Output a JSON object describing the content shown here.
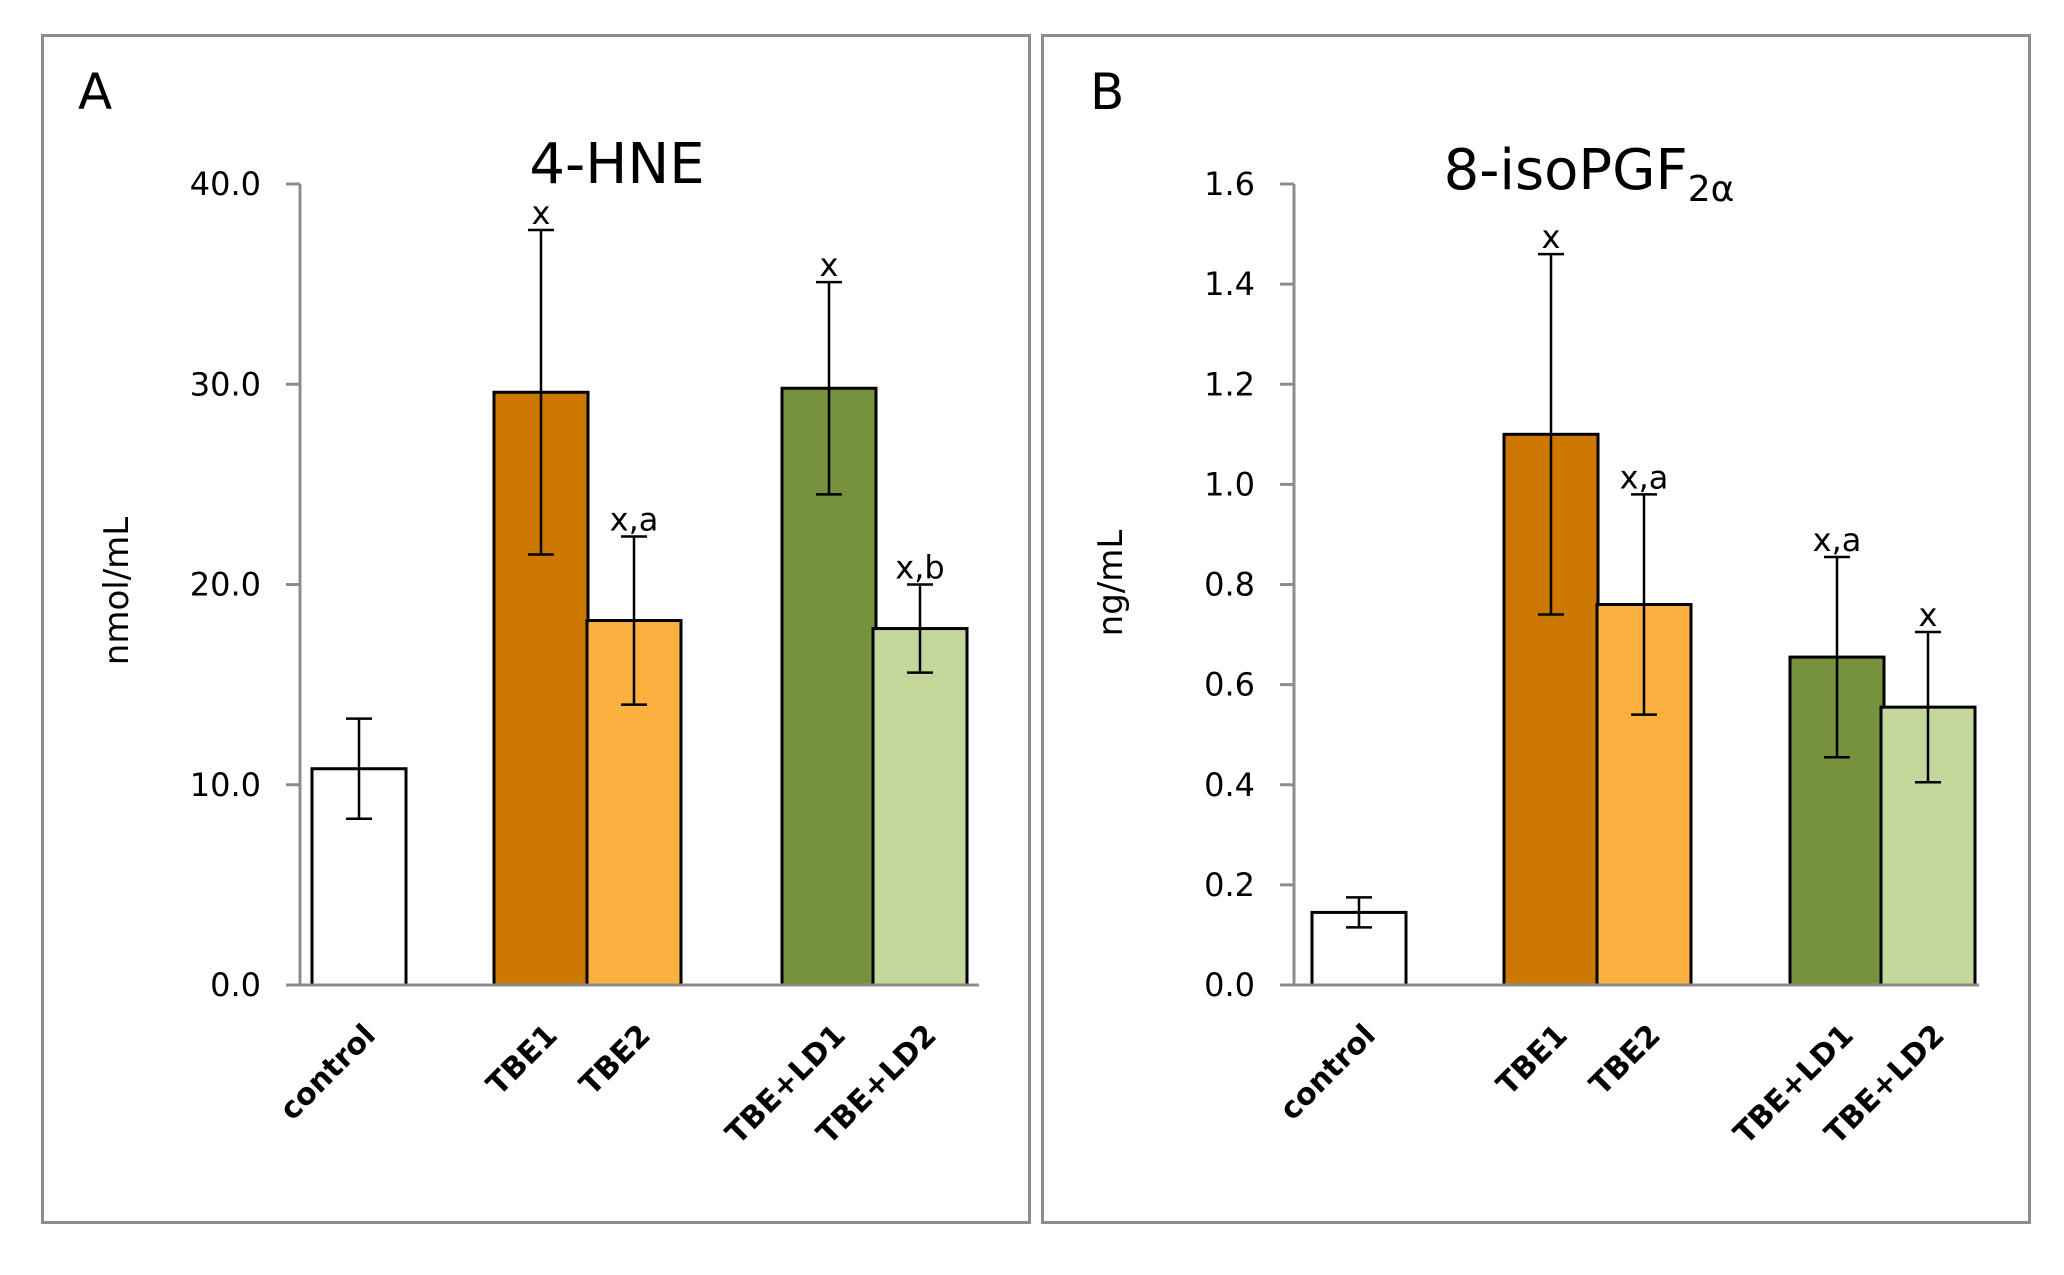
{
  "chart_data": [
    {
      "type": "bar",
      "panel_label": "A",
      "title": "4-HNE",
      "ylabel": "nmol/mL",
      "ylim": [
        0,
        40
      ],
      "yticks": [
        "0.0",
        "10.0",
        "20.0",
        "30.0",
        "40.0"
      ],
      "categories": [
        "control",
        "TBE1",
        "TBE2",
        "TBE+LD1",
        "TBE+LD2"
      ],
      "values": [
        10.8,
        29.6,
        18.2,
        29.8,
        17.8
      ],
      "errors": [
        2.5,
        8.1,
        4.2,
        5.3,
        2.2
      ],
      "significance": [
        "",
        "x",
        "x,a",
        "x",
        "x,b"
      ],
      "colors": [
        "#ffffff",
        "#cc7700",
        "#fbb040",
        "#76923c",
        "#c4d79b"
      ],
      "grid": false
    },
    {
      "type": "bar",
      "panel_label": "B",
      "title": "8-isoPGF",
      "title_sub": "2α",
      "ylabel": "ng/mL",
      "ylim": [
        0,
        1.6
      ],
      "yticks": [
        "0.0",
        "0.2",
        "0.4",
        "0.6",
        "0.8",
        "1.0",
        "1.2",
        "1.4",
        "1.6"
      ],
      "categories": [
        "control",
        "TBE1",
        "TBE2",
        "TBE+LD1",
        "TBE+LD2"
      ],
      "values": [
        0.145,
        1.1,
        0.76,
        0.655,
        0.555
      ],
      "errors": [
        0.03,
        0.36,
        0.22,
        0.2,
        0.15
      ],
      "significance": [
        "",
        "x",
        "x,a",
        "x,a",
        "x"
      ],
      "colors": [
        "#ffffff",
        "#cc7700",
        "#fbb040",
        "#76923c",
        "#c4d79b"
      ],
      "grid": false
    }
  ]
}
